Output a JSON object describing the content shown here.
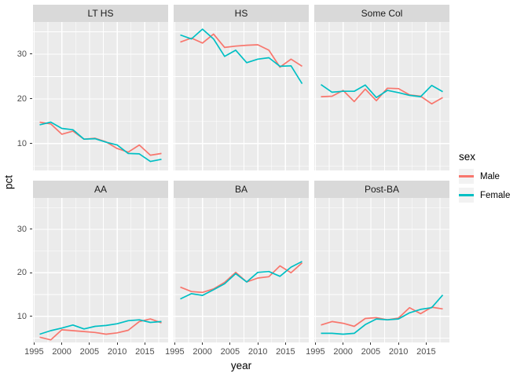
{
  "figure": {
    "x_axis_title": "year",
    "y_axis_title": "pct"
  },
  "legend": {
    "title": "sex",
    "items": [
      {
        "label": "Male",
        "color": "#F8766D"
      },
      {
        "label": "Female",
        "color": "#00BFC4"
      }
    ]
  },
  "chart_data": {
    "type": "line",
    "title": "",
    "xlabel": "year",
    "ylabel": "pct",
    "legend_title": "sex",
    "legend_position": "right",
    "grid": true,
    "x": [
      1996,
      1998,
      2000,
      2002,
      2004,
      2006,
      2008,
      2010,
      2012,
      2014,
      2016,
      2018
    ],
    "x_ticks": [
      1995,
      2000,
      2005,
      2010,
      2015
    ],
    "x_minor": [
      1997.5,
      2002.5,
      2007.5,
      2012.5,
      2017.5
    ],
    "y_ticks": [
      10,
      20,
      30
    ],
    "y_minor": [
      5,
      15,
      25,
      35
    ],
    "xlim": [
      1994.8,
      2019.2
    ],
    "ylim": [
      4.0,
      37.2
    ],
    "series_colors": {
      "Male": "#F8766D",
      "Female": "#00BFC4"
    },
    "facets": [
      {
        "label": "LT HS",
        "series": [
          {
            "name": "Male",
            "values": [
              14.8,
              14.4,
              12.1,
              12.8,
              11.0,
              11.2,
              10.4,
              8.9,
              8.1,
              9.7,
              7.4,
              7.8
            ]
          },
          {
            "name": "Female",
            "values": [
              14.2,
              14.8,
              13.4,
              13.1,
              11.0,
              11.1,
              10.3,
              9.7,
              7.8,
              7.7,
              6.0,
              6.5
            ]
          }
        ]
      },
      {
        "label": "HS",
        "series": [
          {
            "name": "Male",
            "values": [
              32.7,
              33.6,
              32.5,
              34.5,
              31.5,
              31.8,
              32.0,
              32.1,
              30.9,
              27.1,
              28.9,
              27.3
            ]
          },
          {
            "name": "Female",
            "values": [
              34.3,
              33.4,
              35.6,
              33.4,
              29.5,
              30.9,
              28.1,
              28.9,
              29.2,
              27.3,
              27.4,
              23.4
            ]
          }
        ]
      },
      {
        "label": "Some Col",
        "series": [
          {
            "name": "Male",
            "values": [
              20.5,
              20.6,
              21.9,
              19.4,
              22.2,
              19.6,
              22.4,
              22.3,
              20.9,
              20.6,
              18.9,
              20.3
            ]
          },
          {
            "name": "Female",
            "values": [
              23.2,
              21.5,
              21.7,
              21.7,
              23.1,
              20.3,
              21.9,
              21.4,
              20.8,
              20.5,
              23.0,
              21.6
            ]
          }
        ]
      },
      {
        "label": "AA",
        "series": [
          {
            "name": "Male",
            "values": [
              5.2,
              4.6,
              6.9,
              6.7,
              6.5,
              6.3,
              5.9,
              6.2,
              6.8,
              8.8,
              9.4,
              8.5
            ]
          },
          {
            "name": "Female",
            "values": [
              5.9,
              6.7,
              7.3,
              8.0,
              7.1,
              7.7,
              7.9,
              8.3,
              9.0,
              9.2,
              8.6,
              8.8
            ]
          }
        ]
      },
      {
        "label": "BA",
        "series": [
          {
            "name": "Male",
            "values": [
              16.7,
              15.7,
              15.5,
              16.3,
              17.8,
              20.1,
              17.9,
              18.8,
              19.1,
              21.6,
              20.0,
              22.3
            ]
          },
          {
            "name": "Female",
            "values": [
              14.0,
              15.2,
              14.8,
              16.1,
              17.5,
              19.8,
              17.9,
              20.1,
              20.3,
              19.2,
              21.3,
              22.6
            ]
          }
        ]
      },
      {
        "label": "Post-BA",
        "series": [
          {
            "name": "Male",
            "values": [
              8.0,
              8.8,
              8.4,
              7.7,
              9.5,
              9.7,
              9.2,
              9.6,
              12.0,
              10.6,
              12.1,
              11.7
            ]
          },
          {
            "name": "Female",
            "values": [
              6.1,
              6.1,
              5.9,
              6.1,
              8.1,
              9.4,
              9.2,
              9.4,
              10.8,
              11.6,
              12.0,
              14.9
            ]
          }
        ]
      }
    ],
    "style": {
      "panel_bg": "#EBEBEB",
      "strip_bg": "#D9D9D9",
      "grid_color": "#FFFFFF",
      "tick_label_color": "#4D4D4D",
      "strip_text_color": "#1A1A1A",
      "legend_key_bg": "#F2F2F2",
      "tick_color": "#333333"
    }
  }
}
